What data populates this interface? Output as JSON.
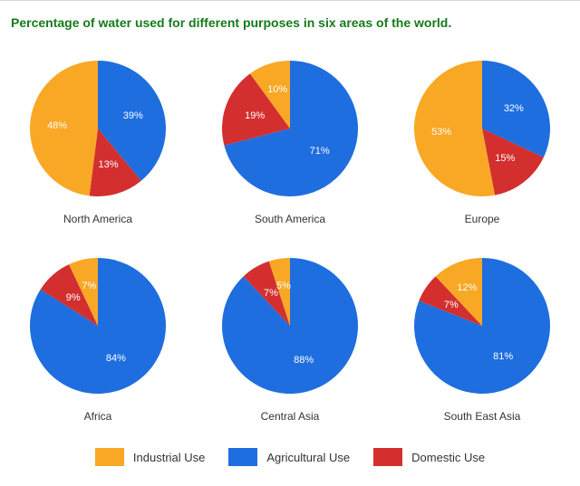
{
  "title": "Percentage of water used for different purposes in six areas of the world.",
  "title_color": "#157a1a",
  "title_fontsize": 14,
  "background_color": "#ffffff",
  "chart": {
    "type": "pie",
    "pie_radius": 75,
    "label_fontsize": 11,
    "caption_fontsize": 12,
    "label_color_light": "#ffffff",
    "label_color_dark": "#333333",
    "start_angle_deg": -90,
    "direction": "cw",
    "categories": [
      {
        "key": "industrial",
        "label": "Industrial Use",
        "color": "#f9a825"
      },
      {
        "key": "agricultural",
        "label": "Agricultural Use",
        "color": "#1e6edf"
      },
      {
        "key": "domestic",
        "label": "Domestic Use",
        "color": "#d32f2f"
      }
    ],
    "label_offsets": {
      "industrial": 0.6,
      "agricultural": 0.55,
      "domestic": 0.55
    },
    "regions": [
      {
        "name": "North America",
        "values": {
          "industrial": 48,
          "agricultural": 39,
          "domestic": 13
        }
      },
      {
        "name": "South America",
        "values": {
          "industrial": 10,
          "agricultural": 71,
          "domestic": 19
        }
      },
      {
        "name": "Europe",
        "values": {
          "industrial": 53,
          "agricultural": 32,
          "domestic": 15
        }
      },
      {
        "name": "Africa",
        "values": {
          "industrial": 7,
          "agricultural": 84,
          "domestic": 9
        }
      },
      {
        "name": "Central Asia",
        "values": {
          "industrial": 5,
          "agricultural": 88,
          "domestic": 7
        }
      },
      {
        "name": "South East Asia",
        "values": {
          "industrial": 12,
          "agricultural": 81,
          "domestic": 7
        }
      }
    ],
    "legend_swatch": {
      "width": 32,
      "height": 20
    }
  }
}
